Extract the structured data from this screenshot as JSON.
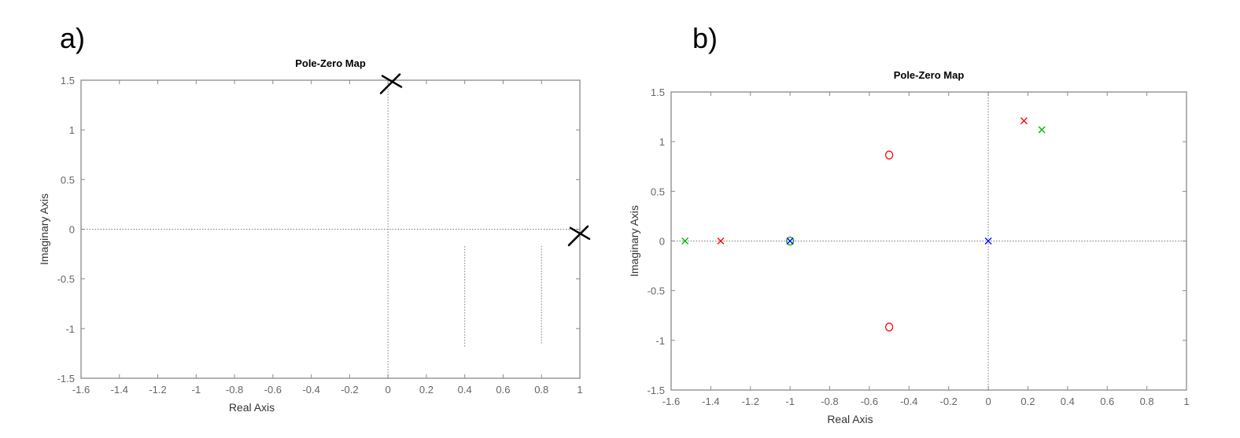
{
  "panels": {
    "a": {
      "label": "a)"
    },
    "b": {
      "label": "b)"
    }
  },
  "chart_data": [
    {
      "type": "scatter",
      "title": "Pole-Zero Map",
      "xlabel": "Real Axis",
      "ylabel": "Imaginary Axis",
      "xlim": [
        -1.6,
        1
      ],
      "ylim": [
        -1.5,
        1.5
      ],
      "xticks": [
        "-1.6",
        "-1.4",
        "-1.2",
        "-1",
        "-0.8",
        "-0.6",
        "-0.4",
        "-0.2",
        "0",
        "0.2",
        "0.4",
        "0.6",
        "0.8",
        "1"
      ],
      "yticks": [
        "-1.5",
        "-1",
        "-0.5",
        "0",
        "0.5",
        "1",
        "1.5"
      ],
      "grid": false,
      "reference_lines": "dotted lines at real=0 and imaginary=0",
      "extra_dotted_segments": [
        {
          "x": 0.4,
          "y": [
            -1.18,
            -0.17
          ]
        },
        {
          "x": 0.8,
          "y": [
            -1.15,
            -0.15
          ]
        }
      ],
      "annotations": [
        {
          "kind": "handwritten-x",
          "x": 0.02,
          "y": 1.48,
          "color": "#000000"
        },
        {
          "kind": "handwritten-x",
          "x": 1.0,
          "y": -0.05,
          "color": "#000000"
        }
      ],
      "series": []
    },
    {
      "type": "scatter",
      "title": "Pole-Zero Map",
      "xlabel": "Real Axis",
      "ylabel": "Imaginary Axis",
      "xlim": [
        -1.6,
        1
      ],
      "ylim": [
        -1.5,
        1.5
      ],
      "xticks": [
        "-1.6",
        "-1.4",
        "-1.2",
        "-1",
        "-0.8",
        "-0.6",
        "-0.4",
        "-0.2",
        "0",
        "0.2",
        "0.4",
        "0.6",
        "0.8",
        "1"
      ],
      "yticks": [
        "-1.5",
        "-1",
        "-0.5",
        "0",
        "0.5",
        "1",
        "1.5"
      ],
      "grid": false,
      "reference_lines": "dotted lines at real=0 and imaginary=0",
      "series": [
        {
          "color": "#ff0000",
          "poles": [
            [
              -1.35,
              0
            ],
            [
              0.18,
              1.21
            ]
          ],
          "zeros": [
            [
              -0.5,
              0.866
            ],
            [
              -0.5,
              -0.866
            ]
          ]
        },
        {
          "color": "#00b000",
          "poles": [
            [
              -1.53,
              0
            ],
            [
              0.27,
              1.12
            ]
          ],
          "zeros": [
            [
              -1.0,
              0
            ]
          ]
        },
        {
          "color": "#0000ff",
          "poles": [
            [
              -1.0,
              0
            ],
            [
              0.0,
              0
            ]
          ],
          "zeros": []
        }
      ]
    }
  ]
}
